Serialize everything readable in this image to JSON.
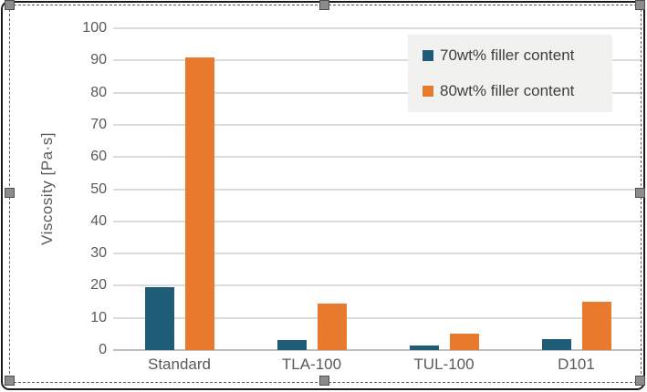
{
  "chart_data": {
    "type": "bar",
    "title": "",
    "xlabel": "",
    "ylabel": "Viscosity [Pa·s]",
    "categories": [
      "Standard",
      "TLA-100",
      "TUL-100",
      "D101"
    ],
    "series": [
      {
        "name": "70wt% filler content",
        "color": "#1F5C78",
        "values": [
          19.5,
          3,
          1.5,
          3.5
        ]
      },
      {
        "name": "80wt% filler content",
        "color": "#E87A2E",
        "values": [
          91,
          14.5,
          5,
          15
        ]
      }
    ],
    "ylim": [
      0,
      100
    ],
    "ytick_step": 10,
    "yticks": [
      0,
      10,
      20,
      30,
      40,
      50,
      60,
      70,
      80,
      90,
      100
    ],
    "grid": true,
    "legend_position": "top-right"
  },
  "selection": {
    "state": "object-selected",
    "handle_count": 8
  },
  "colors": {
    "grid": "#DBDBDB",
    "axis": "#BFBFBF",
    "tick_text": "#595959",
    "legend_bg": "#F1F1F0",
    "frame": "#1B1B1B",
    "handle": "#8C8C8C"
  }
}
